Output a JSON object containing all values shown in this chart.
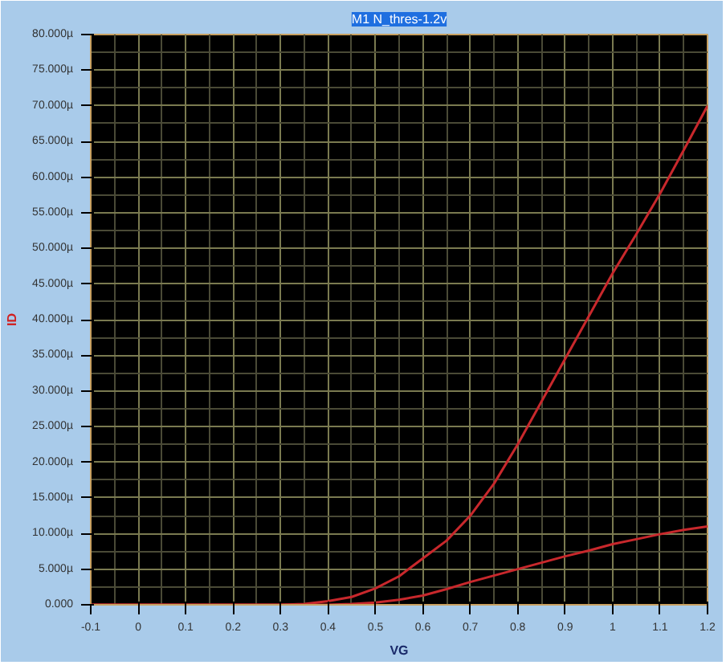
{
  "chart_data": {
    "type": "line",
    "title": "M1 N_thres-1.2v",
    "xlabel": "VG",
    "ylabel": "ID",
    "xlim": [
      -0.1,
      1.2
    ],
    "xticks": [
      -0.1,
      0,
      0.1,
      0.2,
      0.3,
      0.4,
      0.5,
      0.6,
      0.7,
      0.8,
      0.9,
      1,
      1.1,
      1.2
    ],
    "ylim": [
      0,
      80
    ],
    "yticks": [
      {
        "value": 0,
        "label": "0.000"
      },
      {
        "value": 5,
        "label": "5.000µ"
      },
      {
        "value": 10,
        "label": "10.000µ"
      },
      {
        "value": 15,
        "label": "15.000µ"
      },
      {
        "value": 20,
        "label": "20.000µ"
      },
      {
        "value": 25,
        "label": "25.000µ"
      },
      {
        "value": 30,
        "label": "30.000µ"
      },
      {
        "value": 35,
        "label": "35.000µ"
      },
      {
        "value": 40,
        "label": "40.000µ"
      },
      {
        "value": 45,
        "label": "45.000µ"
      },
      {
        "value": 50,
        "label": "50.000µ"
      },
      {
        "value": 55,
        "label": "55.000µ"
      },
      {
        "value": 60,
        "label": "60.000µ"
      },
      {
        "value": 65,
        "label": "65.000µ"
      },
      {
        "value": 70,
        "label": "70.000µ"
      },
      {
        "value": 75,
        "label": "75.000µ"
      },
      {
        "value": 80,
        "label": "80.000µ"
      }
    ],
    "grid": true,
    "marker": "none",
    "line_style": "solid",
    "series": [
      {
        "color": "#c8282c",
        "x": [
          -0.1,
          0.3,
          0.35,
          0.4,
          0.45,
          0.5,
          0.55,
          0.6,
          0.65,
          0.7,
          0.75,
          0.8,
          0.85,
          0.9,
          0.95,
          1.0,
          1.05,
          1.1,
          1.15,
          1.2
        ],
        "values": [
          0,
          0,
          0.1,
          0.5,
          1.1,
          2.3,
          4,
          6.5,
          9,
          12.5,
          17,
          22.5,
          28.5,
          34.5,
          40.5,
          46.5,
          52,
          57.7,
          63.8,
          70
        ]
      },
      {
        "color": "#c8282c",
        "x": [
          -0.1,
          0.4,
          0.45,
          0.5,
          0.55,
          0.6,
          0.65,
          0.7,
          0.75,
          0.8,
          0.85,
          0.9,
          0.95,
          1.0,
          1.05,
          1.1,
          1.15,
          1.2
        ],
        "values": [
          0,
          0,
          0.1,
          0.3,
          0.7,
          1.3,
          2.2,
          3.2,
          4.1,
          5,
          5.9,
          6.8,
          7.6,
          8.5,
          9.2,
          9.9,
          10.5,
          11
        ]
      }
    ]
  }
}
